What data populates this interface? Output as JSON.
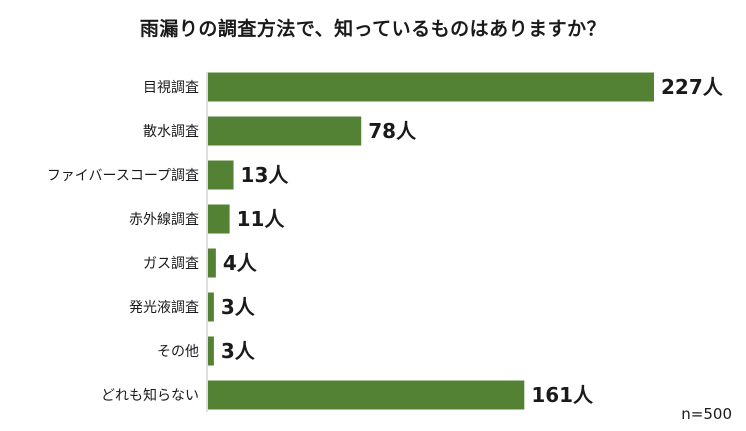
{
  "chart_data": {
    "type": "bar",
    "orientation": "horizontal",
    "title": "雨漏りの調査方法で、知っているものはありますか？",
    "categories": [
      "目視調査",
      "散水調査",
      "ファイバースコープ調査",
      "赤外線調査",
      "ガス調査",
      "発光液調査",
      "その他",
      "どれも知らない"
    ],
    "values": [
      227,
      78,
      13,
      11,
      4,
      3,
      3,
      161
    ],
    "value_labels": [
      "227人",
      "78人",
      "13人",
      "11人",
      "4人",
      "3人",
      "3人",
      "161人"
    ],
    "bar_color": "#548235",
    "sample_note": "n=500",
    "grid": false,
    "legend": "none"
  }
}
